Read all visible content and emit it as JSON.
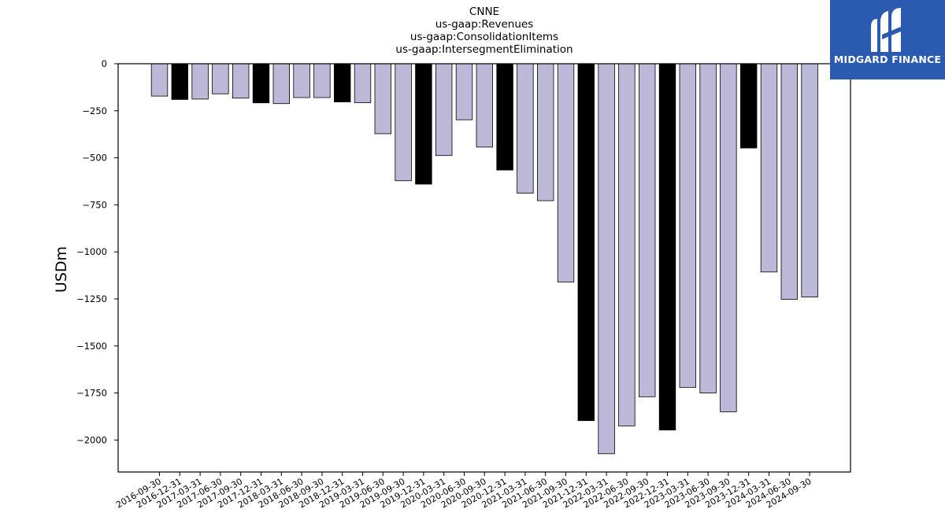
{
  "chart_data": {
    "type": "bar",
    "title_lines": [
      "CNNE",
      "us-gaap:Revenues",
      "us-gaap:ConsolidationItems",
      "us-gaap:IntersegmentElimination"
    ],
    "ylabel": "USDm",
    "xlabel": "",
    "ylim": [
      -2170,
      0
    ],
    "yticks": [
      0,
      -250,
      -500,
      -750,
      -1000,
      -1250,
      -1500,
      -1750,
      -2000
    ],
    "ytick_labels": [
      "0",
      "−250",
      "−500",
      "−750",
      "−1000",
      "−1250",
      "−1500",
      "−1750",
      "−2000"
    ],
    "categories": [
      "2016-09-30",
      "2016-12-31",
      "2017-03-31",
      "2017-06-30",
      "2017-09-30",
      "2017-12-31",
      "2018-03-31",
      "2018-06-30",
      "2018-09-30",
      "2018-12-31",
      "2019-03-31",
      "2019-06-30",
      "2019-09-30",
      "2019-12-31",
      "2020-03-31",
      "2020-06-30",
      "2020-09-30",
      "2020-12-31",
      "2021-03-31",
      "2021-06-30",
      "2021-09-30",
      "2021-12-31",
      "2022-03-31",
      "2022-06-30",
      "2022-09-30",
      "2022-12-31",
      "2023-03-31",
      "2023-06-30",
      "2023-09-30",
      "2023-12-31",
      "2024-03-31",
      "2024-06-30",
      "2024-09-30"
    ],
    "values": [
      -172,
      -190,
      -188,
      -160,
      -183,
      -208,
      -212,
      -180,
      -180,
      -203,
      -207,
      -372,
      -622,
      -640,
      -488,
      -298,
      -443,
      -565,
      -688,
      -728,
      -1160,
      -1897,
      -2073,
      -1925,
      -1770,
      -1947,
      -1720,
      -1750,
      -1850,
      -448,
      -1107,
      -1252,
      -1240
    ],
    "highlight": [
      false,
      true,
      false,
      false,
      false,
      true,
      false,
      false,
      false,
      true,
      false,
      false,
      false,
      true,
      false,
      false,
      false,
      true,
      false,
      false,
      false,
      true,
      false,
      false,
      false,
      true,
      false,
      false,
      false,
      true,
      false,
      false,
      false
    ],
    "colors": {
      "bar": "#bcb8d8",
      "highlight": "#000000",
      "edge": "#000000"
    },
    "grid": false,
    "legend": "none"
  },
  "logo": {
    "text": "MIDGARD FINANCE",
    "background": "#2b5bb0"
  }
}
